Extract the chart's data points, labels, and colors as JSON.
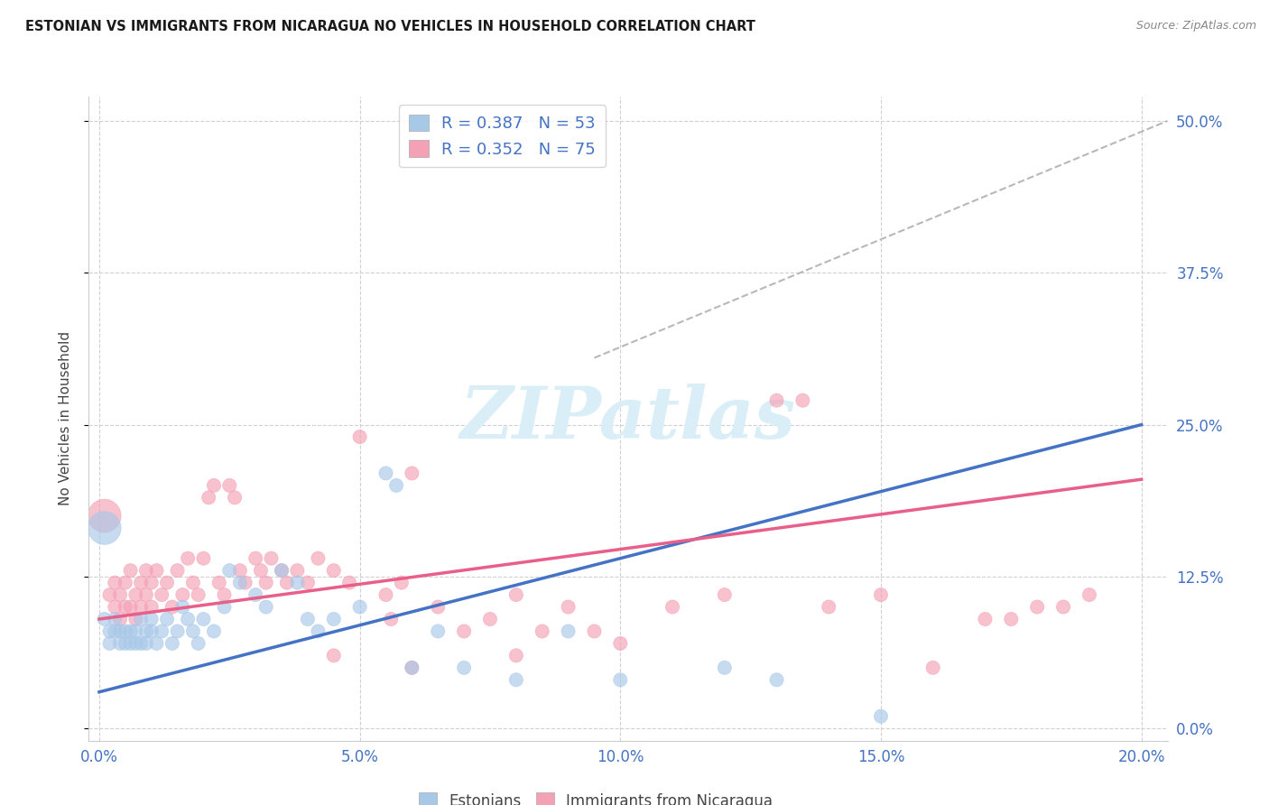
{
  "title": "ESTONIAN VS IMMIGRANTS FROM NICARAGUA NO VEHICLES IN HOUSEHOLD CORRELATION CHART",
  "source": "Source: ZipAtlas.com",
  "xlabel_tick_vals": [
    0.0,
    0.05,
    0.1,
    0.15,
    0.2
  ],
  "ylabel": "No Vehicles in Household",
  "ylabel_tick_vals": [
    0.0,
    0.125,
    0.25,
    0.375,
    0.5
  ],
  "xlim": [
    -0.002,
    0.205
  ],
  "ylim": [
    -0.01,
    0.52
  ],
  "estonian_R": 0.387,
  "estonian_N": 53,
  "nicaragua_R": 0.352,
  "nicaragua_N": 75,
  "estonian_color": "#a8c8e8",
  "nicaragua_color": "#f4a0b5",
  "estonian_line_color": "#4472c4",
  "nicaragua_line_color": "#e8608a",
  "background_color": "#ffffff",
  "grid_color": "#d0d0d0",
  "watermark_color": "#daeef8",
  "legend_labels": [
    "Estonians",
    "Immigrants from Nicaragua"
  ],
  "estonian_points": [
    [
      0.001,
      0.09
    ],
    [
      0.002,
      0.08
    ],
    [
      0.002,
      0.07
    ],
    [
      0.003,
      0.08
    ],
    [
      0.003,
      0.09
    ],
    [
      0.004,
      0.07
    ],
    [
      0.004,
      0.08
    ],
    [
      0.005,
      0.07
    ],
    [
      0.005,
      0.08
    ],
    [
      0.006,
      0.07
    ],
    [
      0.006,
      0.08
    ],
    [
      0.007,
      0.07
    ],
    [
      0.007,
      0.08
    ],
    [
      0.008,
      0.07
    ],
    [
      0.008,
      0.09
    ],
    [
      0.009,
      0.08
    ],
    [
      0.009,
      0.07
    ],
    [
      0.01,
      0.08
    ],
    [
      0.01,
      0.09
    ],
    [
      0.011,
      0.07
    ],
    [
      0.012,
      0.08
    ],
    [
      0.013,
      0.09
    ],
    [
      0.014,
      0.07
    ],
    [
      0.015,
      0.08
    ],
    [
      0.016,
      0.1
    ],
    [
      0.017,
      0.09
    ],
    [
      0.018,
      0.08
    ],
    [
      0.019,
      0.07
    ],
    [
      0.02,
      0.09
    ],
    [
      0.022,
      0.08
    ],
    [
      0.024,
      0.1
    ],
    [
      0.025,
      0.13
    ],
    [
      0.027,
      0.12
    ],
    [
      0.03,
      0.11
    ],
    [
      0.032,
      0.1
    ],
    [
      0.035,
      0.13
    ],
    [
      0.038,
      0.12
    ],
    [
      0.04,
      0.09
    ],
    [
      0.042,
      0.08
    ],
    [
      0.045,
      0.09
    ],
    [
      0.05,
      0.1
    ],
    [
      0.055,
      0.21
    ],
    [
      0.057,
      0.2
    ],
    [
      0.06,
      0.05
    ],
    [
      0.065,
      0.08
    ],
    [
      0.07,
      0.05
    ],
    [
      0.08,
      0.04
    ],
    [
      0.09,
      0.08
    ],
    [
      0.1,
      0.04
    ],
    [
      0.12,
      0.05
    ],
    [
      0.13,
      0.04
    ],
    [
      0.15,
      0.01
    ],
    [
      0.001,
      0.165
    ]
  ],
  "nicaragua_points": [
    [
      0.001,
      0.175
    ],
    [
      0.002,
      0.11
    ],
    [
      0.003,
      0.1
    ],
    [
      0.003,
      0.12
    ],
    [
      0.004,
      0.09
    ],
    [
      0.004,
      0.11
    ],
    [
      0.005,
      0.1
    ],
    [
      0.005,
      0.12
    ],
    [
      0.006,
      0.1
    ],
    [
      0.006,
      0.13
    ],
    [
      0.007,
      0.09
    ],
    [
      0.007,
      0.11
    ],
    [
      0.008,
      0.1
    ],
    [
      0.008,
      0.12
    ],
    [
      0.009,
      0.11
    ],
    [
      0.009,
      0.13
    ],
    [
      0.01,
      0.1
    ],
    [
      0.01,
      0.12
    ],
    [
      0.011,
      0.13
    ],
    [
      0.012,
      0.11
    ],
    [
      0.013,
      0.12
    ],
    [
      0.014,
      0.1
    ],
    [
      0.015,
      0.13
    ],
    [
      0.016,
      0.11
    ],
    [
      0.017,
      0.14
    ],
    [
      0.018,
      0.12
    ],
    [
      0.019,
      0.11
    ],
    [
      0.02,
      0.14
    ],
    [
      0.021,
      0.19
    ],
    [
      0.022,
      0.2
    ],
    [
      0.023,
      0.12
    ],
    [
      0.024,
      0.11
    ],
    [
      0.025,
      0.2
    ],
    [
      0.026,
      0.19
    ],
    [
      0.027,
      0.13
    ],
    [
      0.028,
      0.12
    ],
    [
      0.03,
      0.14
    ],
    [
      0.031,
      0.13
    ],
    [
      0.032,
      0.12
    ],
    [
      0.033,
      0.14
    ],
    [
      0.035,
      0.13
    ],
    [
      0.036,
      0.12
    ],
    [
      0.038,
      0.13
    ],
    [
      0.04,
      0.12
    ],
    [
      0.042,
      0.14
    ],
    [
      0.045,
      0.13
    ],
    [
      0.048,
      0.12
    ],
    [
      0.05,
      0.24
    ],
    [
      0.055,
      0.11
    ],
    [
      0.056,
      0.09
    ],
    [
      0.058,
      0.12
    ],
    [
      0.06,
      0.21
    ],
    [
      0.065,
      0.1
    ],
    [
      0.07,
      0.08
    ],
    [
      0.075,
      0.09
    ],
    [
      0.08,
      0.11
    ],
    [
      0.085,
      0.08
    ],
    [
      0.09,
      0.1
    ],
    [
      0.095,
      0.08
    ],
    [
      0.1,
      0.07
    ],
    [
      0.11,
      0.1
    ],
    [
      0.12,
      0.11
    ],
    [
      0.13,
      0.27
    ],
    [
      0.135,
      0.27
    ],
    [
      0.14,
      0.1
    ],
    [
      0.15,
      0.11
    ],
    [
      0.16,
      0.05
    ],
    [
      0.17,
      0.09
    ],
    [
      0.175,
      0.09
    ],
    [
      0.18,
      0.1
    ],
    [
      0.185,
      0.1
    ],
    [
      0.19,
      0.11
    ],
    [
      0.045,
      0.06
    ],
    [
      0.06,
      0.05
    ],
    [
      0.08,
      0.06
    ]
  ],
  "estonian_point_sizes_base": 120,
  "nicaragua_point_sizes_base": 120,
  "estonian_large_idx": 52,
  "estonian_large_size": 700,
  "nicaragua_large_idx": 0,
  "nicaragua_large_size": 700,
  "est_trend_x": [
    0.0,
    0.2
  ],
  "est_trend_y": [
    0.03,
    0.25
  ],
  "nic_trend_x": [
    0.0,
    0.2
  ],
  "nic_trend_y": [
    0.09,
    0.205
  ],
  "dash_trend_x": [
    0.095,
    0.205
  ],
  "dash_trend_y": [
    0.305,
    0.5
  ]
}
